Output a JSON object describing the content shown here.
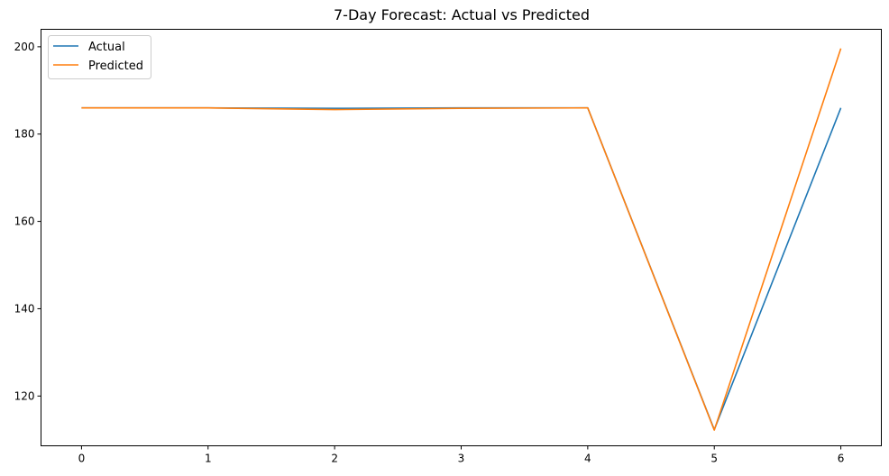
{
  "chart_data": {
    "type": "line",
    "title": "7-Day Forecast: Actual vs Predicted",
    "xlabel": "",
    "ylabel": "",
    "x": [
      0,
      1,
      2,
      3,
      4,
      5,
      6
    ],
    "xticks": [
      "0",
      "1",
      "2",
      "3",
      "4",
      "5",
      "6"
    ],
    "yticks": [
      "120",
      "140",
      "160",
      "180",
      "200"
    ],
    "xlim": [
      -0.32,
      6.32
    ],
    "ylim": [
      108.6,
      204.0
    ],
    "grid": false,
    "legend_position": "upper left",
    "series": [
      {
        "name": "Actual",
        "color": "#1f77b4",
        "values": [
          186.0,
          186.0,
          185.9,
          186.0,
          186.0,
          112.3,
          186.0
        ]
      },
      {
        "name": "Predicted",
        "color": "#ff7f0e",
        "values": [
          186.0,
          186.0,
          185.6,
          185.9,
          186.0,
          112.2,
          199.6
        ]
      }
    ]
  }
}
